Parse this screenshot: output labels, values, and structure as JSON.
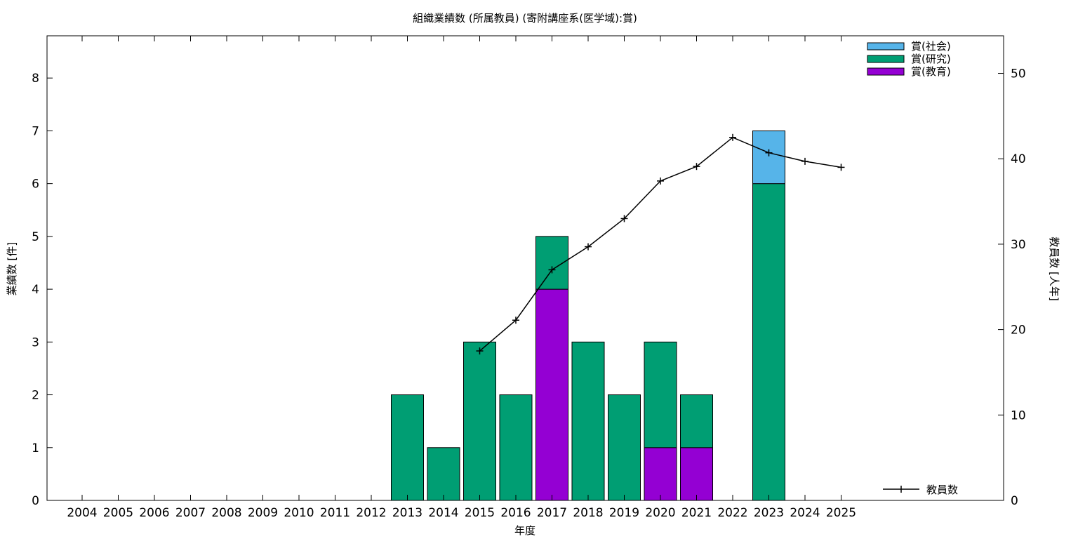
{
  "chart_data": {
    "type": "bar",
    "title": "組織業績数 (所属教員) (寄附講座系(医学域):賞)",
    "xlabel": "年度",
    "ylabel": "業績数 [件]",
    "y2label": "教員数 [人年]",
    "categories": [
      "2004",
      "2005",
      "2006",
      "2007",
      "2008",
      "2009",
      "2010",
      "2011",
      "2012",
      "2013",
      "2014",
      "2015",
      "2016",
      "2017",
      "2018",
      "2019",
      "2020",
      "2021",
      "2022",
      "2023",
      "2024",
      "2025"
    ],
    "ylim": [
      0,
      8.8
    ],
    "y2lim": [
      0,
      54.4
    ],
    "yticks": [
      0,
      1,
      2,
      3,
      4,
      5,
      6,
      7,
      8
    ],
    "y2ticks": [
      0,
      10,
      20,
      30,
      40,
      50
    ],
    "stacked": true,
    "series": [
      {
        "name": "賞(教育)",
        "color": "#9400d3",
        "values": [
          0,
          0,
          0,
          0,
          0,
          0,
          0,
          0,
          0,
          0,
          0,
          0,
          0,
          4,
          0,
          0,
          1,
          1,
          0,
          0,
          0,
          0
        ]
      },
      {
        "name": "賞(研究)",
        "color": "#009e73",
        "values": [
          0,
          0,
          0,
          0,
          0,
          0,
          0,
          0,
          0,
          2,
          1,
          3,
          2,
          1,
          3,
          2,
          2,
          1,
          0,
          6,
          0,
          0
        ]
      },
      {
        "name": "賞(社会)",
        "color": "#56b4e9",
        "values": [
          0,
          0,
          0,
          0,
          0,
          0,
          0,
          0,
          0,
          0,
          0,
          0,
          0,
          0,
          0,
          0,
          0,
          0,
          0,
          1,
          0,
          0
        ]
      }
    ],
    "line": {
      "name": "教員数",
      "axis": "y2",
      "color": "#000000",
      "x": [
        "2015",
        "2016",
        "2017",
        "2018",
        "2019",
        "2020",
        "2021",
        "2022",
        "2023",
        "2024",
        "2025"
      ],
      "values": [
        17.5,
        21.1,
        27.0,
        29.7,
        33.0,
        37.4,
        39.1,
        42.5,
        40.7,
        39.7,
        39.0
      ]
    },
    "legend_position": "top-right",
    "line_legend_position": "bottom-right",
    "grid": false
  }
}
